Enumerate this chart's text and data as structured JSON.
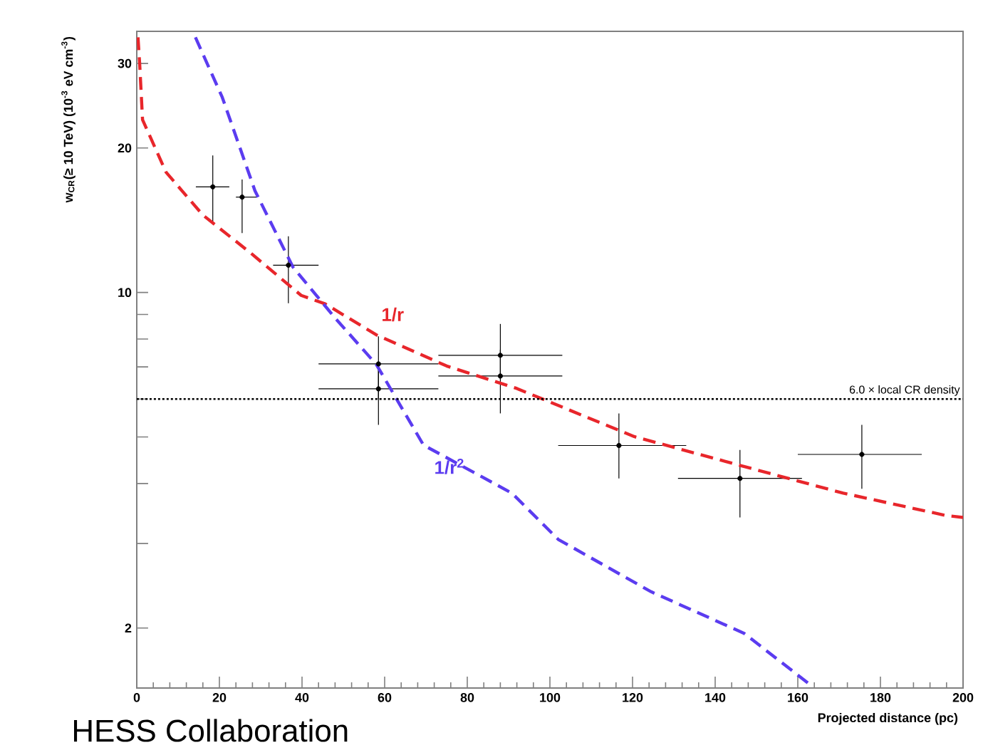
{
  "chart_data": {
    "type": "scatter",
    "xlabel": "Projected distance (pc)",
    "ylabel": "w$_{CR}$(≥ 10 TeV) (10$^{-3}$ eV cm$^{-3}$)",
    "annotations": [
      "HESS Collaboration"
    ],
    "log": "y",
    "xlim": [
      0,
      200
    ],
    "xticks": [
      0,
      20,
      40,
      60,
      80,
      100,
      120,
      140,
      160,
      180,
      200
    ],
    "ylim": [
      1.5,
      35
    ],
    "yticks": [
      2,
      {
        "value": 3,
        "label": null
      },
      {
        "value": 4,
        "label": null
      },
      {
        "value": 5,
        "label": null
      },
      {
        "value": 6,
        "label": null
      },
      {
        "value": 7,
        "label": null
      },
      {
        "value": 8,
        "label": null
      },
      {
        "value": 9,
        "label": null
      },
      10,
      20,
      30
    ],
    "ref_lines": [
      {
        "axis": "y",
        "value": 6.0,
        "label": "6.0 × local CR density",
        "color": "#000000",
        "line_style": "dotted"
      }
    ],
    "series": [
      {
        "color": "#000000",
        "marker": "circle",
        "x": [
          18.4,
          25.5,
          36.7,
          58.5,
          58.5,
          88,
          88,
          116.7,
          146,
          175.5
        ],
        "values": [
          16.6,
          15.8,
          11.4,
          7.1,
          6.3,
          7.4,
          6.7,
          4.8,
          4.1,
          4.6
        ],
        "errors": [
          [
            14.0,
            19.3
          ],
          [
            13.3,
            17.2
          ],
          [
            9.5,
            13.1
          ],
          [
            6.0,
            8.1
          ],
          [
            5.3,
            7.1
          ],
          [
            6.6,
            8.6
          ],
          [
            5.6,
            7.6
          ],
          [
            4.1,
            5.6
          ],
          [
            3.4,
            4.7
          ],
          [
            3.9,
            5.3
          ]
        ],
        "xerrors": [
          [
            14.3,
            22.4
          ],
          [
            24,
            29
          ],
          [
            33,
            44
          ],
          [
            44,
            73
          ],
          [
            44,
            73
          ],
          [
            73,
            103
          ],
          [
            73,
            103
          ],
          [
            102,
            133
          ],
          [
            131,
            161
          ],
          [
            160,
            190
          ]
        ]
      },
      {
        "type": "line",
        "name": "1/r",
        "color": "#e8262b",
        "line_style": "dashed",
        "marker": "none",
        "x": [
          0.3,
          0.7,
          1.4,
          7.1,
          16,
          27.5,
          39.8,
          45.6,
          58,
          75,
          92,
          120.4,
          146.6,
          171,
          196,
          200
        ],
        "values": [
          34,
          30,
          22.9,
          17.8,
          14.5,
          12.1,
          9.86,
          9.47,
          8.16,
          7.03,
          6.31,
          5.01,
          4.35,
          3.82,
          3.43,
          3.4
        ]
      },
      {
        "type": "line",
        "name": "1/r$^{2}$",
        "color": "#5b3cf0",
        "line_style": "dashed",
        "marker": "none",
        "x": [
          14.2,
          20.7,
          28.6,
          37.8,
          48,
          58,
          69.4,
          90.8,
          102,
          124.5,
          147,
          163.6
        ],
        "values": [
          34,
          25.5,
          16.3,
          11.3,
          8.85,
          7.08,
          4.81,
          3.82,
          3.06,
          2.38,
          1.95,
          1.51
        ]
      }
    ]
  }
}
